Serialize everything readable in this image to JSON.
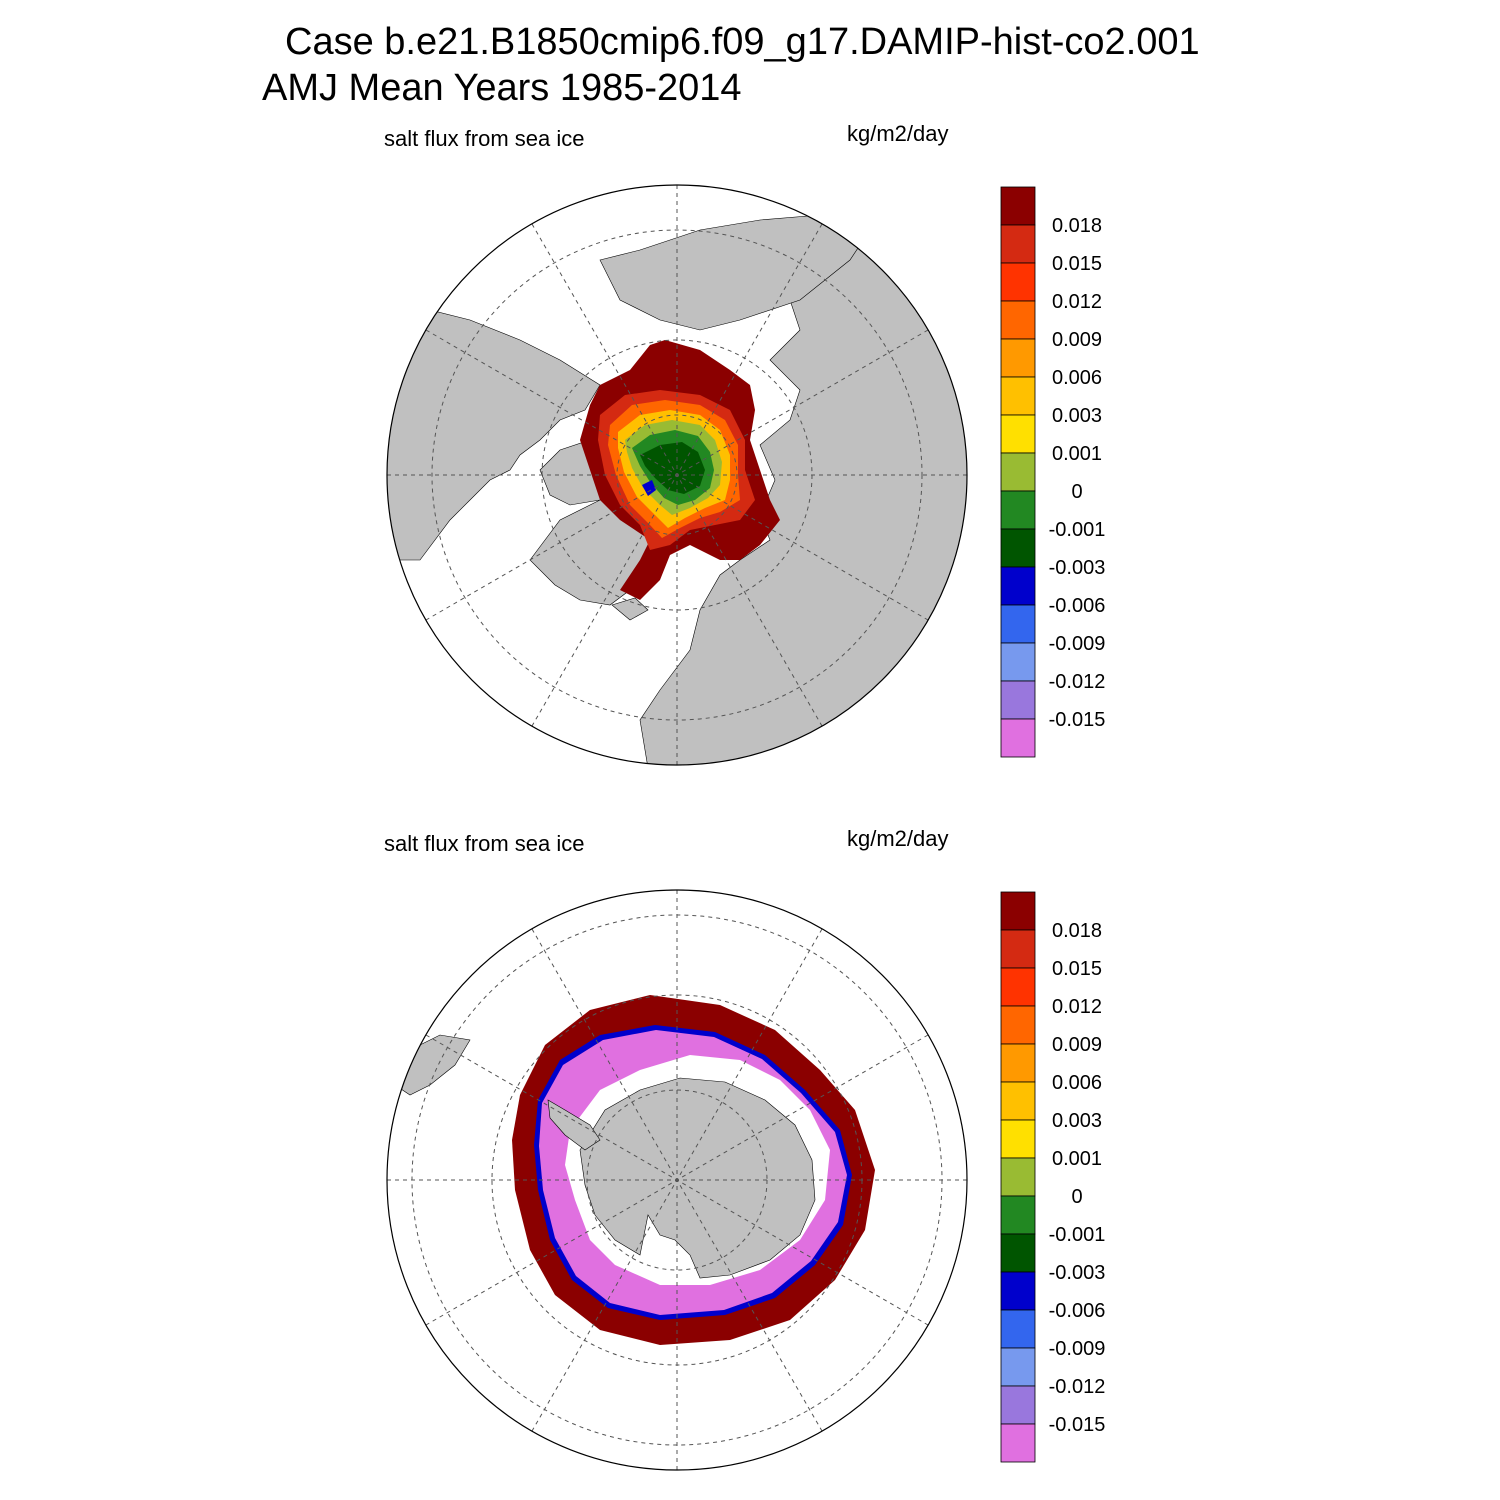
{
  "title_line1": "Case b.e21.B1850cmip6.f09_g17.DAMIP-hist-co2.001",
  "title_line2": "AMJ Mean   Years 1985-2014",
  "colors": {
    "land": "#c0c0c0",
    "grid": "#555555",
    "colorbar": [
      "#8b0000",
      "#d42a12",
      "#ff3300",
      "#ff6600",
      "#ff9900",
      "#ffc000",
      "#ffe000",
      "#99bb33",
      "#228822",
      "#005500",
      "#0000cc",
      "#3366ee",
      "#7799ee",
      "#9977dd",
      "#e070e0"
    ]
  },
  "colorbar_labels": [
    "0.018",
    "0.015",
    "0.012",
    "0.009",
    "0.006",
    "0.003",
    "0.001",
    "0",
    "-0.001",
    "-0.003",
    "-0.006",
    "-0.009",
    "-0.012",
    "-0.015"
  ],
  "panels": [
    {
      "left_label": "salt flux from sea ice",
      "right_label": "kg/m2/day",
      "hemisphere": "north"
    },
    {
      "left_label": "salt flux from sea ice",
      "right_label": "kg/m2/day",
      "hemisphere": "south"
    }
  ]
}
